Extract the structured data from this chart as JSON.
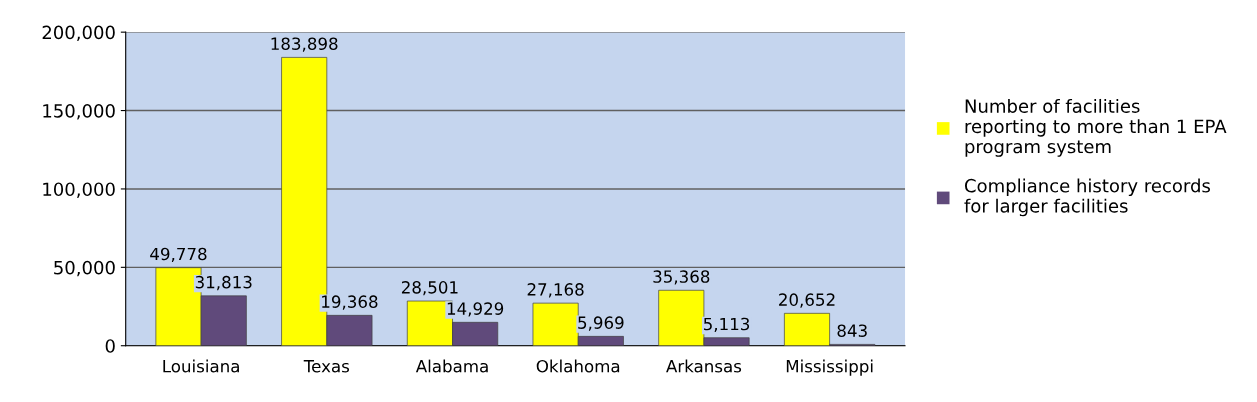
{
  "chart_data": {
    "type": "bar",
    "categories": [
      "Louisiana",
      "Texas",
      "Alabama",
      "Oklahoma",
      "Arkansas",
      "Mississippi"
    ],
    "series": [
      {
        "name": "Number of facilities reporting to more than 1 EPA program system",
        "color": "#ffff00",
        "values": [
          49778,
          183898,
          28501,
          27168,
          35368,
          20652
        ],
        "value_labels": [
          "49,778",
          "183,898",
          "28,501",
          "27,168",
          "35,368",
          "20,652"
        ]
      },
      {
        "name": "Compliance history records for larger facilities",
        "color": "#604a7b",
        "values": [
          31813,
          19368,
          14929,
          5969,
          5113,
          843
        ],
        "value_labels": [
          "31,813",
          "19,368",
          "14,929",
          "5,969",
          "5,113",
          "843"
        ]
      }
    ],
    "ylim": [
      0,
      200000
    ],
    "yticks": [
      0,
      {
        "value": 50000,
        "label": "50,000"
      },
      {
        "value": 100000,
        "label": "100,000"
      },
      {
        "value": 150000,
        "label": "150,000"
      },
      {
        "value": 200000,
        "label": "200,000"
      }
    ],
    "grid": "y",
    "legend": "right"
  }
}
